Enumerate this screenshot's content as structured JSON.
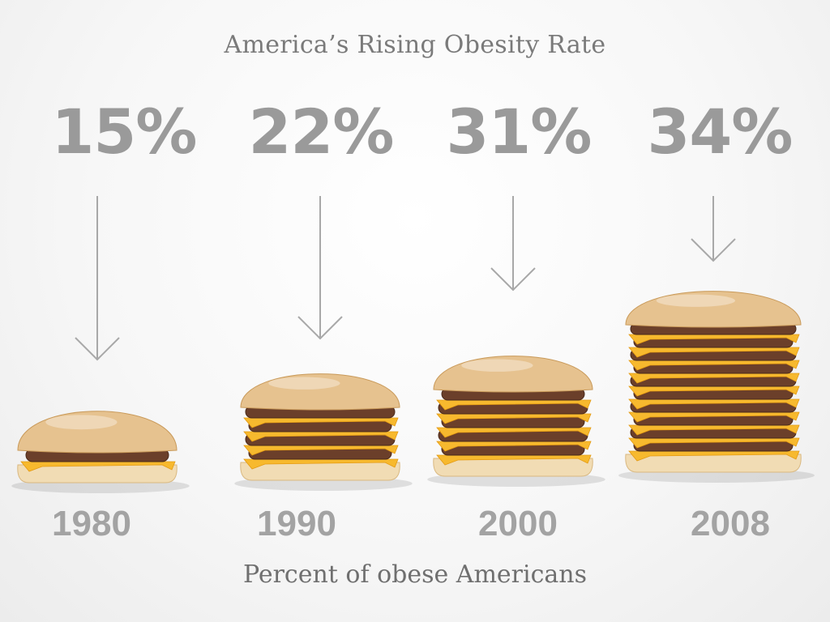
{
  "title": "America’s Rising Obesity Rate",
  "subtitle": "Percent of obese Americans",
  "colors": {
    "text": "#7a7a7a",
    "numbers": "#9a9a9a",
    "arrow": "#a8a8a8",
    "bun": "#e6c28f",
    "patty": "#6b3f2a",
    "cheese": "#f7b92e"
  },
  "chart_data": {
    "type": "bar",
    "categories": [
      "1980",
      "1990",
      "2000",
      "2008"
    ],
    "values": [
      15,
      22,
      31,
      34
    ],
    "value_labels": [
      "15%",
      "22%",
      "31%",
      "34%"
    ],
    "unit": "%",
    "title": "America’s Rising Obesity Rate",
    "xlabel": "Percent of obese Americans",
    "ylabel": "",
    "patties_per_burger": [
      1,
      4,
      5,
      10
    ],
    "grid": false,
    "legend": "none"
  }
}
